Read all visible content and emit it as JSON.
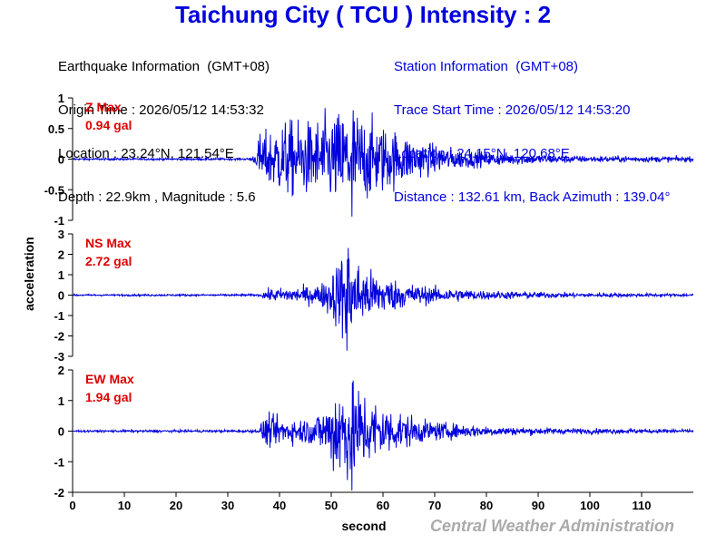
{
  "title": "Taichung City ( TCU ) Intensity : 2",
  "earthquake_info": {
    "header": "Earthquake Information  (GMT+08)",
    "origin_time": "Origin Time : 2026/05/12 14:53:32",
    "location": "Location : 23.24°N, 121.54°E",
    "depth_magnitude": "Depth : 22.9km , Magnitude : 5.6"
  },
  "station_info": {
    "header": "Station Information  (GMT+08)",
    "trace_start": "Trace Start Time : 2026/05/12 14:53:20",
    "location": "Location : 24.15°N, 120.68°E",
    "distance": "Distance : 132.61 km, Back Azimuth : 139.04°"
  },
  "credit": "Central Weather Administration",
  "colors": {
    "trace": "#0000dd",
    "label": "#dd0000",
    "title": "#0000dd",
    "credit": "#aaaaaa"
  },
  "chart_data": {
    "type": "line",
    "xlabel": "second",
    "ylabel": "acceleration",
    "xlim": [
      0,
      120
    ],
    "xticks": [
      0,
      10,
      20,
      30,
      40,
      50,
      60,
      70,
      80,
      90,
      100,
      110
    ],
    "grid": false,
    "panels": [
      {
        "name": "Z",
        "label": "Z Max",
        "max_text": "0.94 gal",
        "max_value": 0.94,
        "ylim": [
          -1,
          1
        ],
        "yticks": [
          -1,
          -0.5,
          0,
          0.5,
          1
        ],
        "envelope": [
          [
            0,
            0.02
          ],
          [
            34,
            0.02
          ],
          [
            35.5,
            0.12
          ],
          [
            36,
            0.45
          ],
          [
            38,
            0.55
          ],
          [
            41,
            0.72
          ],
          [
            46,
            0.7
          ],
          [
            50,
            0.85
          ],
          [
            54,
            0.94
          ],
          [
            58,
            0.72
          ],
          [
            62,
            0.55
          ],
          [
            66,
            0.38
          ],
          [
            70,
            0.27
          ],
          [
            75,
            0.18
          ],
          [
            80,
            0.13
          ],
          [
            90,
            0.09
          ],
          [
            100,
            0.06
          ],
          [
            120,
            0.05
          ]
        ]
      },
      {
        "name": "NS",
        "label": "NS Max",
        "max_text": "2.72 gal",
        "max_value": 2.72,
        "ylim": [
          -3,
          3
        ],
        "yticks": [
          -3,
          -2,
          -1,
          0,
          1,
          2,
          3
        ],
        "envelope": [
          [
            0,
            0.05
          ],
          [
            36,
            0.06
          ],
          [
            38,
            0.35
          ],
          [
            44,
            0.45
          ],
          [
            48,
            0.6
          ],
          [
            50,
            1.4
          ],
          [
            53,
            2.72
          ],
          [
            56,
            1.6
          ],
          [
            60,
            1.1
          ],
          [
            64,
            0.7
          ],
          [
            70,
            0.45
          ],
          [
            80,
            0.25
          ],
          [
            90,
            0.18
          ],
          [
            100,
            0.12
          ],
          [
            120,
            0.08
          ]
        ]
      },
      {
        "name": "EW",
        "label": "EW Max",
        "max_text": "1.94 gal",
        "max_value": 1.94,
        "ylim": [
          -2,
          2
        ],
        "yticks": [
          -2,
          -1,
          0,
          1,
          2
        ],
        "envelope": [
          [
            0,
            0.04
          ],
          [
            36,
            0.05
          ],
          [
            37,
            0.6
          ],
          [
            42,
            0.45
          ],
          [
            46,
            0.5
          ],
          [
            49,
            0.9
          ],
          [
            51,
            1.9
          ],
          [
            54,
            1.94
          ],
          [
            58,
            1.2
          ],
          [
            62,
            0.8
          ],
          [
            68,
            0.4
          ],
          [
            75,
            0.25
          ],
          [
            85,
            0.15
          ],
          [
            100,
            0.1
          ],
          [
            120,
            0.07
          ]
        ]
      }
    ]
  }
}
